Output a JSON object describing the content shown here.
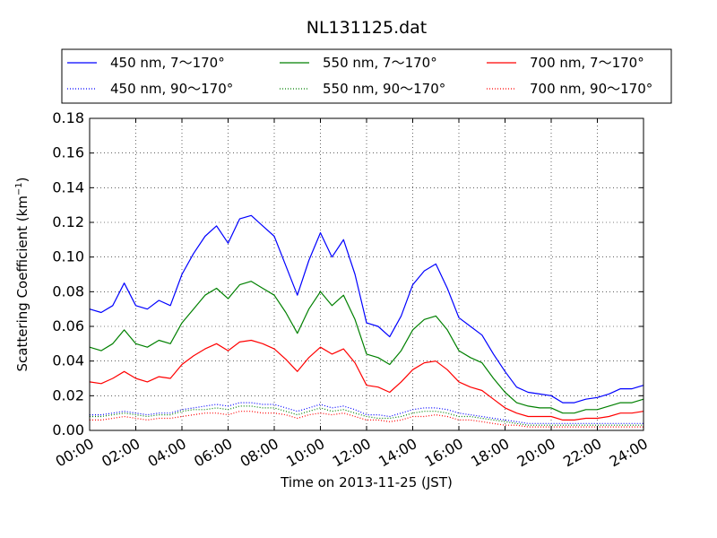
{
  "chart_data": {
    "type": "line",
    "title": "NL131125.dat",
    "xlabel": "Time on 2013-11-25 (JST)",
    "ylabel": "Scattering Coefficient (km",
    "ylabel_sup": "−1",
    "ylabel_end": ")",
    "x_unit": "hour",
    "xlim": [
      0,
      24
    ],
    "ylim": [
      0,
      0.18
    ],
    "x_ticks": [
      0,
      2,
      4,
      6,
      8,
      10,
      12,
      14,
      16,
      18,
      20,
      22,
      24
    ],
    "x_tick_labels": [
      "00:00",
      "02:00",
      "04:00",
      "06:00",
      "08:00",
      "10:00",
      "12:00",
      "14:00",
      "16:00",
      "18:00",
      "20:00",
      "22:00",
      "24:00"
    ],
    "y_ticks": [
      0.0,
      0.02,
      0.04,
      0.06,
      0.08,
      0.1,
      0.12,
      0.14,
      0.16,
      0.18
    ],
    "y_tick_labels": [
      "0.00",
      "0.02",
      "0.04",
      "0.06",
      "0.08",
      "0.10",
      "0.12",
      "0.14",
      "0.16",
      "0.18"
    ],
    "grid": true,
    "legend_position": "top, above plot",
    "x": [
      0,
      0.5,
      1,
      1.5,
      2,
      2.5,
      3,
      3.5,
      4,
      4.5,
      5,
      5.5,
      6,
      6.5,
      7,
      7.5,
      8,
      8.5,
      9,
      9.5,
      10,
      10.5,
      11,
      11.5,
      12,
      12.5,
      13,
      13.5,
      14,
      14.5,
      15,
      15.5,
      16,
      16.5,
      17,
      17.5,
      18,
      18.5,
      19,
      19.5,
      20,
      20.5,
      21,
      21.5,
      22,
      22.5,
      23,
      23.5,
      24
    ],
    "series": [
      {
        "name": "450 nm, 7～170°",
        "color": "#0000ff",
        "style": "solid",
        "values": [
          0.07,
          0.068,
          0.072,
          0.085,
          0.072,
          0.07,
          0.075,
          0.072,
          0.09,
          0.102,
          0.112,
          0.118,
          0.108,
          0.122,
          0.124,
          0.118,
          0.112,
          0.095,
          0.078,
          0.098,
          0.114,
          0.1,
          0.11,
          0.09,
          0.062,
          0.06,
          0.054,
          0.066,
          0.084,
          0.092,
          0.096,
          0.082,
          0.065,
          0.06,
          0.055,
          0.044,
          0.034,
          0.025,
          0.022,
          0.021,
          0.02,
          0.016,
          0.016,
          0.018,
          0.019,
          0.021,
          0.024,
          0.024,
          0.026
        ]
      },
      {
        "name": "550 nm, 7～170°",
        "color": "#008000",
        "style": "solid",
        "values": [
          0.048,
          0.046,
          0.05,
          0.058,
          0.05,
          0.048,
          0.052,
          0.05,
          0.062,
          0.07,
          0.078,
          0.082,
          0.076,
          0.084,
          0.086,
          0.082,
          0.078,
          0.068,
          0.056,
          0.07,
          0.08,
          0.072,
          0.078,
          0.064,
          0.044,
          0.042,
          0.038,
          0.046,
          0.058,
          0.064,
          0.066,
          0.058,
          0.046,
          0.042,
          0.039,
          0.03,
          0.022,
          0.016,
          0.014,
          0.013,
          0.013,
          0.01,
          0.01,
          0.012,
          0.012,
          0.014,
          0.016,
          0.016,
          0.018
        ]
      },
      {
        "name": "700 nm, 7～170°",
        "color": "#ff0000",
        "style": "solid",
        "values": [
          0.028,
          0.027,
          0.03,
          0.034,
          0.03,
          0.028,
          0.031,
          0.03,
          0.038,
          0.043,
          0.047,
          0.05,
          0.046,
          0.051,
          0.052,
          0.05,
          0.047,
          0.041,
          0.034,
          0.042,
          0.048,
          0.044,
          0.047,
          0.039,
          0.026,
          0.025,
          0.022,
          0.028,
          0.035,
          0.039,
          0.04,
          0.035,
          0.028,
          0.025,
          0.023,
          0.018,
          0.013,
          0.01,
          0.008,
          0.008,
          0.008,
          0.006,
          0.006,
          0.007,
          0.007,
          0.008,
          0.01,
          0.01,
          0.011
        ]
      },
      {
        "name": "450 nm, 90～170°",
        "color": "#0000ff",
        "style": "dotted",
        "values": [
          0.009,
          0.009,
          0.01,
          0.011,
          0.01,
          0.009,
          0.01,
          0.01,
          0.012,
          0.013,
          0.014,
          0.015,
          0.014,
          0.016,
          0.016,
          0.015,
          0.015,
          0.013,
          0.011,
          0.013,
          0.015,
          0.013,
          0.014,
          0.012,
          0.009,
          0.009,
          0.008,
          0.01,
          0.012,
          0.013,
          0.013,
          0.012,
          0.01,
          0.009,
          0.008,
          0.007,
          0.006,
          0.005,
          0.004,
          0.004,
          0.004,
          0.004,
          0.004,
          0.004,
          0.004,
          0.004,
          0.004,
          0.004,
          0.004
        ]
      },
      {
        "name": "550 nm, 90～170°",
        "color": "#008000",
        "style": "dotted",
        "values": [
          0.008,
          0.008,
          0.009,
          0.01,
          0.009,
          0.008,
          0.009,
          0.009,
          0.011,
          0.012,
          0.012,
          0.013,
          0.012,
          0.014,
          0.014,
          0.013,
          0.013,
          0.011,
          0.009,
          0.011,
          0.013,
          0.011,
          0.012,
          0.01,
          0.008,
          0.007,
          0.007,
          0.008,
          0.01,
          0.011,
          0.011,
          0.01,
          0.008,
          0.008,
          0.007,
          0.006,
          0.005,
          0.004,
          0.003,
          0.003,
          0.003,
          0.003,
          0.003,
          0.003,
          0.003,
          0.003,
          0.003,
          0.003,
          0.003
        ]
      },
      {
        "name": "700 nm, 90～170°",
        "color": "#ff0000",
        "style": "dotted",
        "values": [
          0.006,
          0.006,
          0.007,
          0.008,
          0.007,
          0.006,
          0.007,
          0.007,
          0.008,
          0.009,
          0.01,
          0.01,
          0.009,
          0.011,
          0.011,
          0.01,
          0.01,
          0.009,
          0.007,
          0.009,
          0.01,
          0.009,
          0.01,
          0.008,
          0.006,
          0.006,
          0.005,
          0.006,
          0.008,
          0.008,
          0.009,
          0.008,
          0.006,
          0.006,
          0.005,
          0.004,
          0.003,
          0.003,
          0.002,
          0.002,
          0.002,
          0.002,
          0.002,
          0.002,
          0.002,
          0.002,
          0.002,
          0.002,
          0.002
        ]
      }
    ]
  }
}
